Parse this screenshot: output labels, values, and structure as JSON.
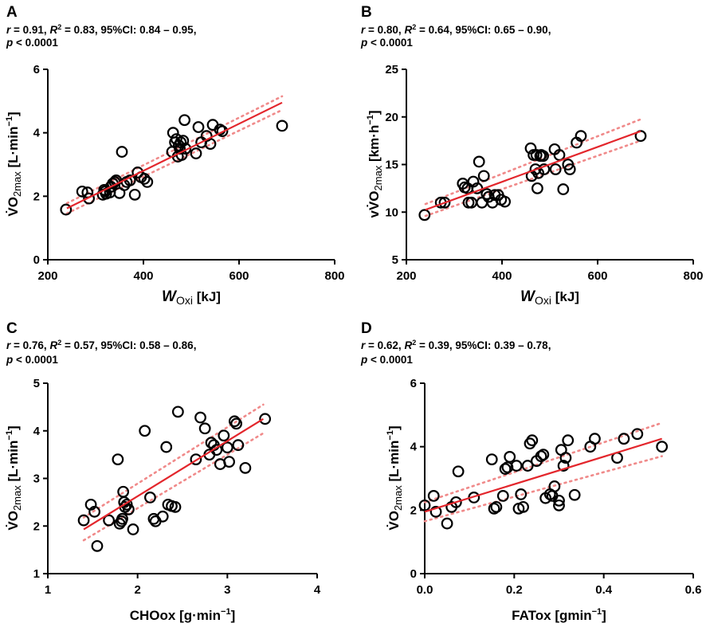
{
  "figure": {
    "panels": [
      "A",
      "B",
      "C",
      "D"
    ]
  },
  "chart_data": [
    {
      "panel": "A",
      "type": "scatter",
      "stats": {
        "r_label": "r",
        "r_value": " = 0.91, ",
        "r2_label": "R",
        "r2_sup": "2",
        "r2_value": " = 0.83, 95%CI:  0.84 – 0.95,",
        "p_label": "p",
        "p_value": " < 0.0001"
      },
      "xlabel": {
        "main": "W",
        "sub": "Oxi",
        "unit": " [kJ]"
      },
      "ylabel": {
        "dot": "V̇",
        "main": "O",
        "sub": "2max",
        "unit": " [L·min",
        "sup": "−1",
        "close": "]"
      },
      "xlim": [
        200,
        800
      ],
      "ylim": [
        0,
        6
      ],
      "xticks": [
        200,
        400,
        600,
        800
      ],
      "yticks": [
        0,
        2,
        4,
        6
      ],
      "x": [
        238,
        272,
        283,
        286,
        315,
        318,
        320,
        322,
        330,
        332,
        336,
        340,
        343,
        350,
        355,
        360,
        365,
        372,
        382,
        388,
        395,
        402,
        408,
        460,
        462,
        466,
        469,
        472,
        474,
        476,
        478,
        480,
        483,
        486,
        488,
        510,
        515,
        521,
        532,
        540,
        545,
        560,
        565,
        690
      ],
      "y": [
        1.58,
        2.15,
        2.12,
        1.93,
        2.05,
        2.2,
        2.15,
        2.08,
        2.12,
        2.3,
        2.4,
        2.45,
        2.5,
        2.1,
        3.4,
        2.35,
        2.45,
        2.5,
        2.05,
        2.75,
        2.6,
        2.55,
        2.45,
        3.4,
        4.0,
        3.7,
        3.8,
        3.25,
        3.6,
        3.5,
        3.7,
        3.3,
        3.75,
        4.4,
        3.5,
        3.35,
        4.18,
        3.7,
        3.9,
        3.65,
        4.25,
        4.1,
        4.05,
        4.22
      ],
      "fit": {
        "x": [
          240,
          690
        ],
        "y": [
          1.62,
          4.95
        ]
      },
      "ci_upper": {
        "x": [
          240,
          690
        ],
        "y": [
          1.78,
          5.15
        ]
      },
      "ci_lower": {
        "x": [
          240,
          690
        ],
        "y": [
          1.46,
          4.72
        ]
      }
    },
    {
      "panel": "B",
      "type": "scatter",
      "stats": {
        "r_label": "r",
        "r_value": " = 0.80, ",
        "r2_label": "R",
        "r2_sup": "2",
        "r2_value": " = 0.64, 95%CI:  0.65 – 0.90,",
        "p_label": "p",
        "p_value": " < 0.0001"
      },
      "xlabel": {
        "main": "W",
        "sub": "Oxi",
        "unit": " [kJ]"
      },
      "ylabel": {
        "dot": "vV̇",
        "main": "O",
        "sub": "2max",
        "unit": " [km·h",
        "sup": "−1",
        "close": "]"
      },
      "xlim": [
        200,
        800
      ],
      "ylim": [
        5,
        25
      ],
      "xticks": [
        200,
        400,
        600,
        800
      ],
      "yticks": [
        5,
        10,
        15,
        20,
        25
      ],
      "x": [
        238,
        272,
        280,
        318,
        322,
        328,
        330,
        336,
        340,
        348,
        352,
        358,
        362,
        368,
        372,
        380,
        385,
        392,
        398,
        406,
        460,
        462,
        466,
        470,
        472,
        474,
        476,
        480,
        482,
        486,
        488,
        510,
        512,
        520,
        528,
        538,
        542,
        556,
        565,
        690
      ],
      "y": [
        9.7,
        11.0,
        11.0,
        13.0,
        12.6,
        12.5,
        11.0,
        11.0,
        13.2,
        12.5,
        15.3,
        11.0,
        13.8,
        11.9,
        11.6,
        11.0,
        11.8,
        11.8,
        11.3,
        11.1,
        16.7,
        13.8,
        16.0,
        14.5,
        16.0,
        12.5,
        14.1,
        15.9,
        16.0,
        15.9,
        14.5,
        16.6,
        14.5,
        16.0,
        12.4,
        15.0,
        14.5,
        17.3,
        18.0,
        18.0
      ],
      "fit": {
        "x": [
          240,
          690
        ],
        "y": [
          10.25,
          18.5
        ]
      },
      "ci_upper": {
        "x": [
          240,
          690
        ],
        "y": [
          10.85,
          19.75
        ]
      },
      "ci_lower": {
        "x": [
          240,
          690
        ],
        "y": [
          9.6,
          17.5
        ]
      }
    },
    {
      "panel": "C",
      "type": "scatter",
      "stats": {
        "r_label": "r",
        "r_value": " = 0.76, ",
        "r2_label": "R",
        "r2_sup": "2",
        "r2_value": " = 0.57, 95%CI:  0.58 – 0.86,",
        "p_label": "p",
        "p_value": " < 0.0001"
      },
      "xlabel": {
        "main": "CHOox",
        "sub": "",
        "unit": " [g·min",
        "sup": "−1",
        "close": "]"
      },
      "ylabel": {
        "dot": "V̇",
        "main": "O",
        "sub": "2max",
        "unit": " [L·min",
        "sup": "−1",
        "close": "]"
      },
      "xlim": [
        1,
        4
      ],
      "ylim": [
        1,
        5
      ],
      "xticks": [
        1,
        2,
        3,
        4
      ],
      "yticks": [
        1,
        2,
        3,
        4,
        5
      ],
      "x": [
        1.4,
        1.48,
        1.52,
        1.55,
        1.68,
        1.78,
        1.8,
        1.82,
        1.83,
        1.84,
        1.85,
        1.86,
        1.88,
        1.9,
        1.95,
        2.08,
        2.14,
        2.18,
        2.2,
        2.28,
        2.32,
        2.34,
        2.38,
        2.42,
        2.45,
        2.65,
        2.7,
        2.75,
        2.8,
        2.82,
        2.85,
        2.88,
        2.92,
        2.96,
        3.0,
        3.02,
        3.08,
        3.1,
        3.12,
        3.2,
        3.42
      ],
      "y": [
        2.12,
        2.45,
        2.3,
        1.58,
        2.12,
        3.4,
        2.05,
        2.1,
        2.15,
        2.72,
        2.5,
        2.4,
        2.45,
        2.35,
        1.93,
        4.0,
        2.6,
        2.15,
        2.1,
        2.2,
        3.66,
        2.45,
        2.42,
        2.4,
        4.4,
        3.4,
        4.28,
        4.05,
        3.5,
        3.75,
        3.7,
        3.6,
        3.3,
        3.9,
        3.65,
        3.35,
        4.2,
        4.15,
        3.7,
        3.22,
        4.25
      ],
      "fit": {
        "x": [
          1.4,
          3.4
        ],
        "y": [
          1.93,
          4.25
        ]
      },
      "ci_upper": {
        "x": [
          1.4,
          3.4
        ],
        "y": [
          2.18,
          4.55
        ]
      },
      "ci_lower": {
        "x": [
          1.4,
          3.4
        ],
        "y": [
          1.7,
          3.95
        ]
      }
    },
    {
      "panel": "D",
      "type": "scatter",
      "stats": {
        "r_label": "r",
        "r_value": " = 0.62, ",
        "r2_label": "R",
        "r2_sup": "2",
        "r2_value": " = 0.39, 95%CI:  0.39 – 0.78,",
        "p_label": "p",
        "p_value": " < 0.0001"
      },
      "xlabel": {
        "main": "FATox",
        "sub": "",
        "unit": " [gmin",
        "sup": "−1",
        "close": "]"
      },
      "ylabel": {
        "dot": "V̇",
        "main": "O",
        "sub": "2max",
        "unit": " [L·min",
        "sup": "−1",
        "close": "]"
      },
      "xlim": [
        0,
        0.6
      ],
      "ylim": [
        0,
        6
      ],
      "xticks": [
        0.0,
        0.2,
        0.4,
        0.6
      ],
      "yticks": [
        0,
        2,
        4,
        6
      ],
      "x": [
        0.0,
        0.02,
        0.025,
        0.05,
        0.06,
        0.07,
        0.075,
        0.11,
        0.15,
        0.155,
        0.16,
        0.175,
        0.18,
        0.185,
        0.19,
        0.205,
        0.21,
        0.215,
        0.22,
        0.23,
        0.235,
        0.24,
        0.25,
        0.26,
        0.265,
        0.27,
        0.28,
        0.285,
        0.29,
        0.3,
        0.3,
        0.305,
        0.31,
        0.315,
        0.32,
        0.335,
        0.37,
        0.38,
        0.43,
        0.445,
        0.475,
        0.53
      ],
      "y": [
        2.15,
        2.45,
        1.95,
        1.58,
        2.1,
        2.25,
        3.22,
        2.4,
        3.6,
        2.05,
        2.1,
        2.45,
        3.3,
        3.35,
        3.68,
        3.4,
        2.05,
        2.5,
        2.1,
        3.4,
        4.1,
        4.2,
        3.55,
        3.7,
        3.75,
        2.38,
        2.5,
        2.45,
        2.75,
        2.3,
        2.15,
        3.9,
        3.4,
        3.65,
        4.2,
        2.48,
        4.0,
        4.25,
        3.65,
        4.25,
        4.4,
        4.0
      ],
      "fit": {
        "x": [
          0.0,
          0.53
        ],
        "y": [
          1.95,
          4.25
        ]
      },
      "ci_upper": {
        "x": [
          0.0,
          0.53
        ],
        "y": [
          2.25,
          4.75
        ]
      },
      "ci_lower": {
        "x": [
          0.0,
          0.53
        ],
        "y": [
          1.65,
          3.7
        ]
      }
    }
  ]
}
